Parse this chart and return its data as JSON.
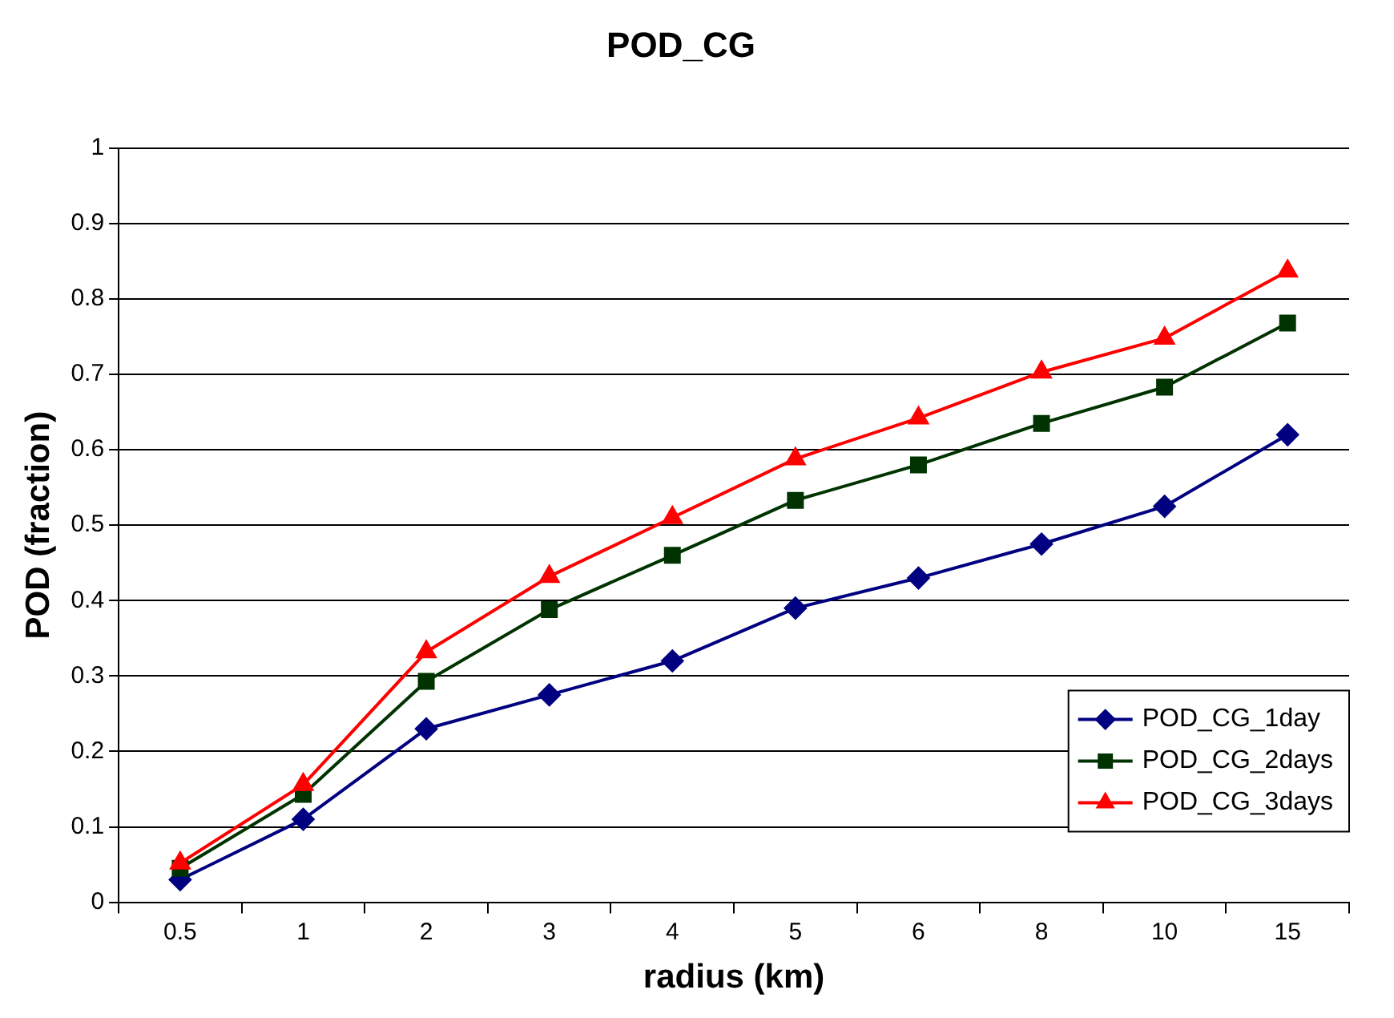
{
  "chart_data": {
    "type": "line",
    "title": "POD_CG",
    "xlabel": "radius (km)",
    "ylabel": "POD (fraction)",
    "categories": [
      "0.5",
      "1",
      "2",
      "3",
      "4",
      "5",
      "6",
      "8",
      "10",
      "15"
    ],
    "series": [
      {
        "name": "POD_CG_1day",
        "color": "#000080",
        "marker": "diamond",
        "values": [
          0.03,
          0.11,
          0.23,
          0.275,
          0.32,
          0.39,
          0.43,
          0.475,
          0.525,
          0.62
        ]
      },
      {
        "name": "POD_CG_2days",
        "color": "#003300",
        "marker": "square",
        "values": [
          0.045,
          0.143,
          0.293,
          0.388,
          0.46,
          0.533,
          0.58,
          0.635,
          0.683,
          0.768
        ]
      },
      {
        "name": "POD_CG_3days",
        "color": "#ff0000",
        "marker": "triangle",
        "values": [
          0.052,
          0.156,
          0.332,
          0.432,
          0.51,
          0.588,
          0.642,
          0.703,
          0.748,
          0.837
        ]
      }
    ],
    "ylim": [
      0,
      1
    ],
    "yticks": [
      0,
      0.1,
      0.2,
      0.3,
      0.4,
      0.5,
      0.6,
      0.7,
      0.8,
      0.9,
      1
    ],
    "grid": "y",
    "legend": "bottom right",
    "line_style": "solid"
  }
}
